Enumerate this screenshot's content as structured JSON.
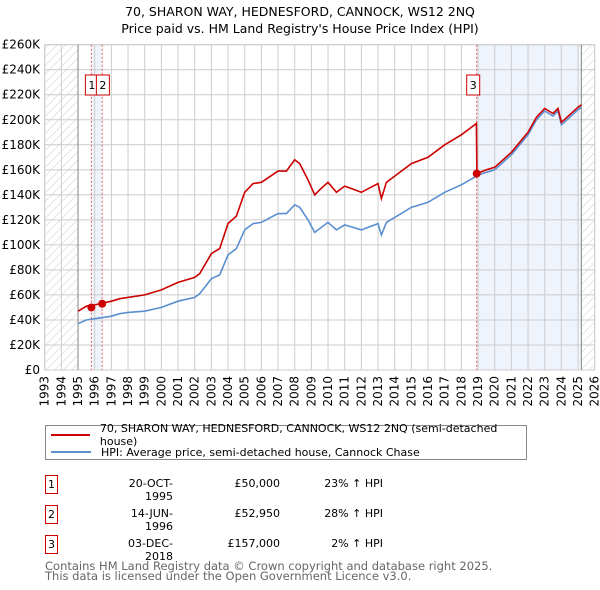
{
  "chart_data": {
    "type": "line",
    "title": "70, SHARON WAY, HEDNESFORD, CANNOCK, WS12 2NQ",
    "subtitle": "Price paid vs. HM Land Registry's House Price Index (HPI)",
    "xlim": [
      1993,
      2026
    ],
    "ylim": [
      0,
      260000
    ],
    "grid": true,
    "x_ticks": [
      "1993",
      "1994",
      "1995",
      "1996",
      "1997",
      "1998",
      "1999",
      "2000",
      "2001",
      "2002",
      "2003",
      "2004",
      "2005",
      "2006",
      "2007",
      "2008",
      "2009",
      "2010",
      "2011",
      "2012",
      "2013",
      "2014",
      "2015",
      "2016",
      "2017",
      "2018",
      "2019",
      "2020",
      "2021",
      "2022",
      "2023",
      "2024",
      "2025",
      "2026"
    ],
    "y_ticks": [
      {
        "value": 0,
        "label": "£0"
      },
      {
        "value": 20000,
        "label": "£20K"
      },
      {
        "value": 40000,
        "label": "£40K"
      },
      {
        "value": 60000,
        "label": "£60K"
      },
      {
        "value": 80000,
        "label": "£80K"
      },
      {
        "value": 100000,
        "label": "£100K"
      },
      {
        "value": 120000,
        "label": "£120K"
      },
      {
        "value": 140000,
        "label": "£140K"
      },
      {
        "value": 160000,
        "label": "£160K"
      },
      {
        "value": 180000,
        "label": "£180K"
      },
      {
        "value": 200000,
        "label": "£200K"
      },
      {
        "value": 220000,
        "label": "£220K"
      },
      {
        "value": 240000,
        "label": "£240K"
      },
      {
        "value": 260000,
        "label": "£260K"
      }
    ],
    "x": [
      1995.0,
      1995.5,
      1996,
      1997,
      1997.5,
      1998,
      1999,
      2000,
      2001,
      2002,
      2002.3,
      2003,
      2003.5,
      2004,
      2004.5,
      2005,
      2005.5,
      2006,
      2007,
      2007.5,
      2008,
      2008.3,
      2008.8,
      2009.2,
      2009.5,
      2010,
      2010.5,
      2011,
      2012,
      2013,
      2013.2,
      2013.5,
      2014,
      2015,
      2016,
      2017,
      2018,
      2018.9,
      2018.93,
      2019.5,
      2020,
      2021,
      2022,
      2022.5,
      2023,
      2023.5,
      2023.8,
      2024,
      2024.5,
      2025,
      2025.2
    ],
    "series": [
      {
        "name": "70, SHARON WAY, HEDNESFORD, CANNOCK, WS12 2NQ (semi-detached house)",
        "color": "#cc0000",
        "values": [
          47000,
          51000,
          52000,
          55000,
          57000,
          58000,
          60000,
          64000,
          70000,
          74000,
          77000,
          93000,
          97000,
          117000,
          123000,
          142000,
          149000,
          150000,
          159000,
          159000,
          168000,
          165000,
          152000,
          140000,
          144000,
          150000,
          142000,
          147000,
          142000,
          149000,
          137000,
          150000,
          155000,
          165000,
          170000,
          180000,
          188000,
          197000,
          157000,
          160000,
          162000,
          174000,
          190000,
          202000,
          209000,
          205000,
          209000,
          198000,
          204000,
          210000,
          212000
        ]
      },
      {
        "name": "HPI: Average price, semi-detached house, Cannock Chase",
        "color": "#5b8fd0",
        "values": [
          37000,
          40000,
          41000,
          43000,
          45000,
          46000,
          47000,
          50000,
          55000,
          58000,
          61000,
          73000,
          76000,
          92000,
          97000,
          112000,
          117000,
          118000,
          125000,
          125000,
          132000,
          130000,
          120000,
          110000,
          113000,
          118000,
          112000,
          116000,
          112000,
          117000,
          108000,
          118000,
          122000,
          130000,
          134000,
          142000,
          148000,
          155000,
          155500,
          158000,
          160000,
          172000,
          188000,
          200000,
          207000,
          203000,
          207000,
          196000,
          202000,
          208000,
          210000
        ]
      }
    ],
    "sales": [
      {
        "id": "1",
        "x": 1995.8,
        "y": 50000
      },
      {
        "id": "2",
        "x": 1996.45,
        "y": 52950
      },
      {
        "id": "3",
        "x": 2018.92,
        "y": 157000
      }
    ],
    "data_end": 2025.2
  },
  "legend": {
    "property": "70, SHARON WAY, HEDNESFORD, CANNOCK, WS12 2NQ (semi-detached house)",
    "hpi": "HPI: Average price, semi-detached house, Cannock Chase"
  },
  "transactions": [
    {
      "id": "1",
      "date": "20-OCT-1995",
      "price": "£50,000",
      "hpi": "23% ↑ HPI"
    },
    {
      "id": "2",
      "date": "14-JUN-1996",
      "price": "£52,950",
      "hpi": "28% ↑ HPI"
    },
    {
      "id": "3",
      "date": "03-DEC-2018",
      "price": "£157,000",
      "hpi": "2% ↑ HPI"
    }
  ],
  "footer": {
    "line1": "Contains HM Land Registry data © Crown copyright and database right 2025.",
    "line2": "This data is licensed under the Open Government Licence v3.0."
  }
}
